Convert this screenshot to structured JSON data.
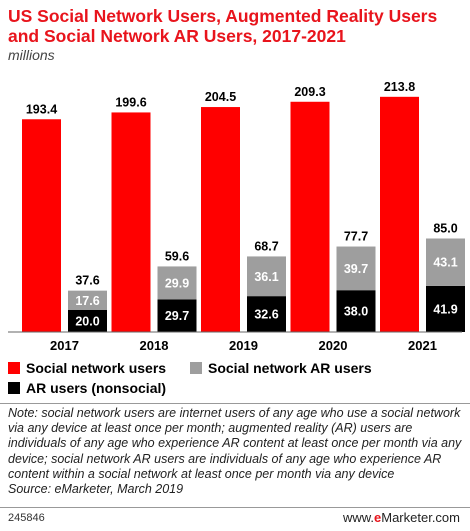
{
  "title": "US Social Network Users, Augmented Reality Users and Social Network AR Users, 2017-2021",
  "subtitle": "millions",
  "colors": {
    "social": "#ff0000",
    "socialAR": "#9e9e9e",
    "ar": "#000000"
  },
  "chart_data": {
    "type": "bar",
    "title": "US Social Network Users, Augmented Reality Users and Social Network AR Users, 2017-2021",
    "subtitle": "millions",
    "categories": [
      "2017",
      "2018",
      "2019",
      "2020",
      "2021"
    ],
    "series": [
      {
        "name": "Social network users",
        "values": [
          193.4,
          199.6,
          204.5,
          209.3,
          213.8
        ]
      },
      {
        "name": "AR users (nonsocial)",
        "values": [
          20.0,
          29.7,
          32.6,
          38.0,
          41.9
        ]
      },
      {
        "name": "Social network AR users",
        "values": [
          17.6,
          29.9,
          36.1,
          39.7,
          43.1
        ]
      }
    ],
    "stack_totals": [
      37.6,
      59.6,
      68.7,
      77.7,
      85.0
    ],
    "value_labels": {
      "social": [
        "193.4",
        "199.6",
        "204.5",
        "209.3",
        "213.8"
      ],
      "ar": [
        "20.0",
        "29.7",
        "32.6",
        "38.0",
        "41.9"
      ],
      "socialAR": [
        "17.6",
        "29.9",
        "36.1",
        "39.7",
        "43.1"
      ],
      "totals": [
        "37.6",
        "59.6",
        "68.7",
        "77.7",
        "85.0"
      ]
    },
    "ylim": [
      0,
      240
    ],
    "grid": false,
    "legend_position": "bottom"
  },
  "legend": {
    "social": "Social network users",
    "socialAR": "Social network AR users",
    "ar": "AR users (nonsocial)"
  },
  "note": "Note: social network users are internet users of any age who use a social network via any device at least once per month; augmented reality (AR) users are individuals of any age who experience AR content at least once per month via any device; social network AR users are individuals of any age who experience AR content within a social network at least once per month via any device",
  "source": "Source: eMarketer, March 2019",
  "footer": {
    "id": "245846",
    "logo_prefix": "www.",
    "logo_e": "e",
    "logo_suffix": "Marketer.com"
  }
}
